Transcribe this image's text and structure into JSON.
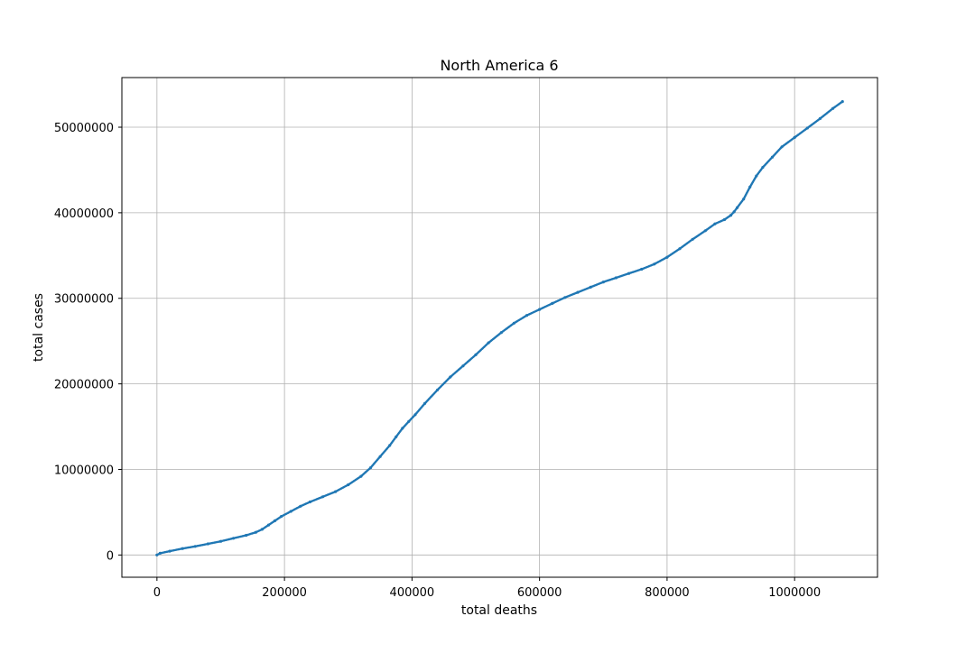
{
  "chart_data": {
    "type": "scatter",
    "title": "North America 6",
    "xlabel": "total deaths",
    "ylabel": "total cases",
    "xlim": [
      -55000,
      1130000
    ],
    "ylim": [
      -2600000,
      55800000
    ],
    "xticks": [
      0,
      200000,
      400000,
      600000,
      800000,
      1000000
    ],
    "xtick_labels": [
      "0",
      "200000",
      "400000",
      "600000",
      "800000",
      "1000000"
    ],
    "yticks": [
      0,
      10000000,
      20000000,
      30000000,
      40000000,
      50000000
    ],
    "ytick_labels": [
      "0",
      "10000000",
      "20000000",
      "30000000",
      "40000000",
      "50000000"
    ],
    "grid": true,
    "marker_color": "#1f77b4",
    "series": [
      {
        "x": [
          0,
          5000,
          20000,
          40000,
          60000,
          80000,
          100000,
          120000,
          140000,
          155000,
          165000,
          175000,
          185000,
          195000,
          210000,
          225000,
          240000,
          260000,
          280000,
          300000,
          320000,
          335000,
          350000,
          365000,
          375000,
          385000,
          395000,
          405000,
          420000,
          440000,
          460000,
          480000,
          500000,
          520000,
          540000,
          560000,
          580000,
          600000,
          620000,
          640000,
          660000,
          680000,
          700000,
          720000,
          740000,
          760000,
          780000,
          800000,
          820000,
          840000,
          860000,
          875000,
          890000,
          900000,
          905000,
          910000,
          920000,
          930000,
          940000,
          950000,
          965000,
          980000,
          1000000,
          1020000,
          1040000,
          1060000,
          1075000
        ],
        "y": [
          0,
          200000,
          450000,
          750000,
          1000000,
          1300000,
          1600000,
          1950000,
          2300000,
          2650000,
          3000000,
          3500000,
          4000000,
          4500000,
          5100000,
          5700000,
          6200000,
          6800000,
          7400000,
          8200000,
          9200000,
          10200000,
          11500000,
          12800000,
          13800000,
          14800000,
          15600000,
          16400000,
          17700000,
          19300000,
          20800000,
          22100000,
          23400000,
          24800000,
          26000000,
          27100000,
          28000000,
          28700000,
          29400000,
          30100000,
          30700000,
          31300000,
          31900000,
          32400000,
          32900000,
          33400000,
          34000000,
          34800000,
          35800000,
          36900000,
          37900000,
          38700000,
          39200000,
          39700000,
          40100000,
          40600000,
          41600000,
          43000000,
          44300000,
          45300000,
          46500000,
          47700000,
          48800000,
          49900000,
          51000000,
          52200000,
          53000000
        ]
      }
    ]
  }
}
